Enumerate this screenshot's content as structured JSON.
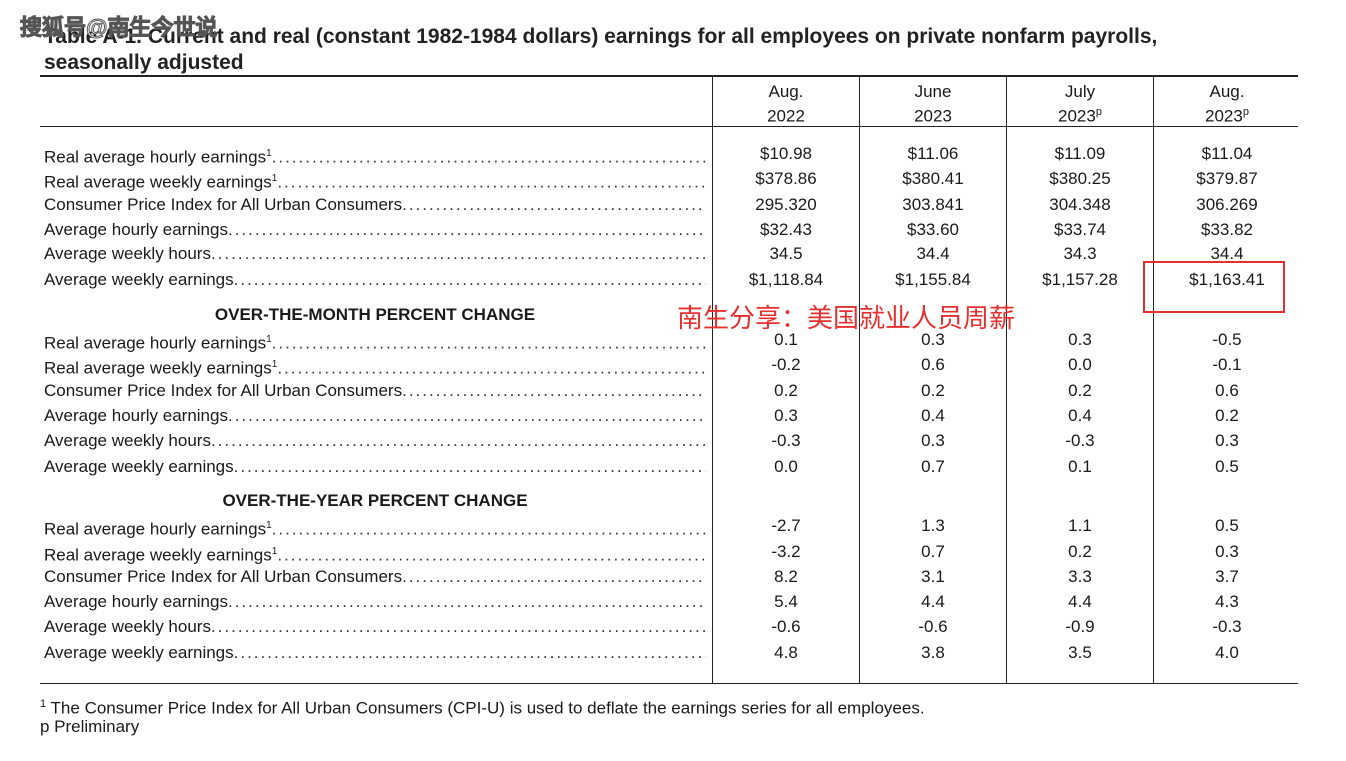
{
  "watermark": "搜狐号@南生今世说",
  "title": "Table A-1. Current and real (constant 1982-1984 dollars) earnings for all employees on private nonfarm payrolls, seasonally adjusted",
  "columns": [
    {
      "line1": "Aug.",
      "line2": "2022",
      "mark": ""
    },
    {
      "line1": "June",
      "line2": "2023",
      "mark": ""
    },
    {
      "line1": "July",
      "line2": "2023",
      "mark": "p"
    },
    {
      "line1": "Aug.",
      "line2": "2023",
      "mark": "p"
    }
  ],
  "levels": [
    {
      "label": "Real average hourly earnings",
      "sup": "1",
      "values": [
        "$10.98",
        "$11.06",
        "$11.09",
        "$11.04"
      ]
    },
    {
      "label": "Real average weekly earnings",
      "sup": "1",
      "values": [
        "$378.86",
        "$380.41",
        "$380.25",
        "$379.87"
      ]
    },
    {
      "label": "Consumer Price Index for All Urban Consumers",
      "sup": "",
      "values": [
        "295.320",
        "303.841",
        "304.348",
        "306.269"
      ]
    },
    {
      "label": "Average hourly earnings",
      "sup": "",
      "values": [
        "$32.43",
        "$33.60",
        "$33.74",
        "$33.82"
      ]
    },
    {
      "label": "Average weekly hours",
      "sup": "",
      "values": [
        "34.5",
        "34.4",
        "34.3",
        "34.4"
      ]
    },
    {
      "label": "Average weekly earnings",
      "sup": "",
      "values": [
        "$1,118.84",
        "$1,155.84",
        "$1,157.28",
        "$1,163.41"
      ]
    }
  ],
  "month_section": {
    "heading": "OVER-THE-MONTH PERCENT CHANGE",
    "rows": [
      {
        "label": "Real average hourly earnings",
        "sup": "1",
        "values": [
          "0.1",
          "0.3",
          "0.3",
          "-0.5"
        ]
      },
      {
        "label": "Real average weekly earnings",
        "sup": "1",
        "values": [
          "-0.2",
          "0.6",
          "0.0",
          "-0.1"
        ]
      },
      {
        "label": "Consumer Price Index for All Urban Consumers",
        "sup": "",
        "values": [
          "0.2",
          "0.2",
          "0.2",
          "0.6"
        ]
      },
      {
        "label": "Average hourly earnings",
        "sup": "",
        "values": [
          "0.3",
          "0.4",
          "0.4",
          "0.2"
        ]
      },
      {
        "label": "Average weekly hours",
        "sup": "",
        "values": [
          "-0.3",
          "0.3",
          "-0.3",
          "0.3"
        ]
      },
      {
        "label": "Average weekly earnings",
        "sup": "",
        "values": [
          "0.0",
          "0.7",
          "0.1",
          "0.5"
        ]
      }
    ]
  },
  "year_section": {
    "heading": "OVER-THE-YEAR PERCENT CHANGE",
    "rows": [
      {
        "label": "Real average hourly earnings",
        "sup": "1",
        "values": [
          "-2.7",
          "1.3",
          "1.1",
          "0.5"
        ]
      },
      {
        "label": "Real average weekly earnings",
        "sup": "1",
        "values": [
          "-3.2",
          "0.7",
          "0.2",
          "0.3"
        ]
      },
      {
        "label": "Consumer Price Index for All Urban Consumers",
        "sup": "",
        "values": [
          "8.2",
          "3.1",
          "3.3",
          "3.7"
        ]
      },
      {
        "label": "Average hourly earnings",
        "sup": "",
        "values": [
          "5.4",
          "4.4",
          "4.4",
          "4.3"
        ]
      },
      {
        "label": "Average weekly hours",
        "sup": "",
        "values": [
          "-0.6",
          "-0.6",
          "-0.9",
          "-0.3"
        ]
      },
      {
        "label": "Average weekly earnings",
        "sup": "",
        "values": [
          "4.8",
          "3.8",
          "3.5",
          "4.0"
        ]
      }
    ]
  },
  "annotation": "南生分享：美国就业人员周薪",
  "footnotes": {
    "note1_mark": "1",
    "note1_text": "The Consumer Price Index for All Urban Consumers (CPI-U) is used to deflate the earnings series for all employees.",
    "note2": "p Preliminary"
  },
  "highlight_color": "#e53030"
}
